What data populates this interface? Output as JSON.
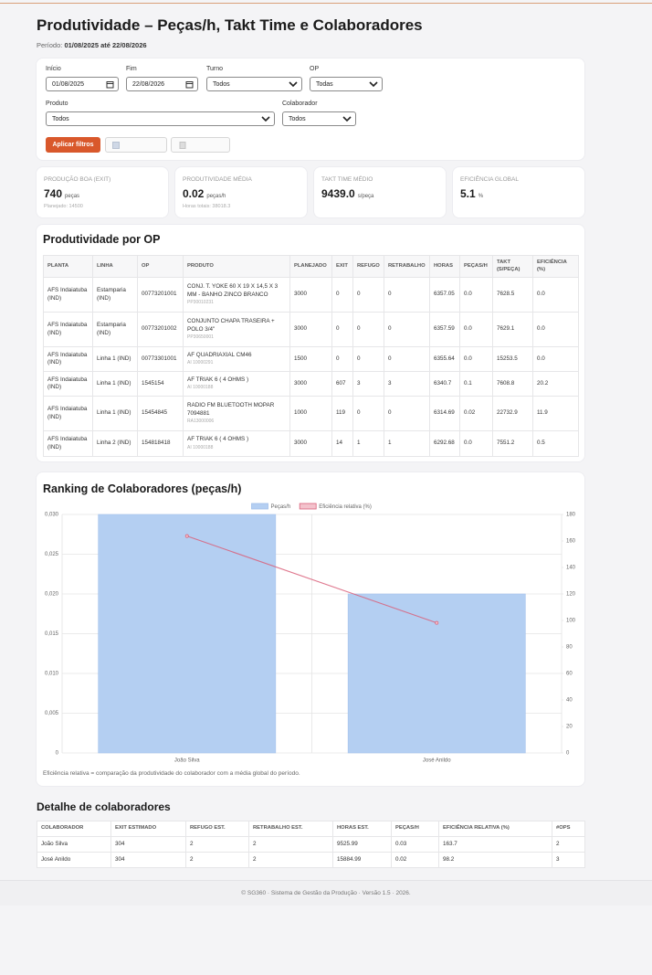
{
  "header": {
    "title": "Produtividade – Peças/h, Takt Time e Colaboradores",
    "period_label": "Período:",
    "period": "01/08/2025 até 22/08/2026"
  },
  "filters": {
    "fields": [
      {
        "label": "Início",
        "value": "01/08/2025"
      },
      {
        "label": "Fim",
        "value": "22/08/2026"
      },
      {
        "label": "Turno",
        "value": "Todos"
      },
      {
        "label": "OP",
        "value": "Todas"
      },
      {
        "label": "Produto",
        "value": "Todos"
      },
      {
        "label": "Colaborador",
        "value": "Todos"
      }
    ],
    "apply": "Aplicar filtros"
  },
  "kpis": [
    {
      "label": "Produção boa (EXIT)",
      "value": "740",
      "unit": "peças",
      "sub": "Planejado: 14500"
    },
    {
      "label": "Produtividade média",
      "value": "0.02",
      "unit": "peças/h",
      "sub": "Horas totais: 38018.3"
    },
    {
      "label": "Takt time médio",
      "value": "9439.0",
      "unit": "s/peça"
    },
    {
      "label": "Eficiência global",
      "value": "5.1",
      "unit": "%"
    }
  ],
  "op_table": {
    "title": "Produtividade por OP",
    "columns": [
      "PLANTA",
      "LINHA",
      "OP",
      "PRODUTO",
      "PLANEJADO",
      "EXIT",
      "REFUGO",
      "RETRABALHO",
      "HORAS",
      "PEÇAS/H",
      "TAKT (S/PEÇA)",
      "EFICIÊNCIA (%)"
    ],
    "rows": [
      {
        "planta": "AFS Indaiatuba (IND)",
        "linha": "Estamparia (IND)",
        "op": "00773201001",
        "produto": "CONJ. T. YOKE 60 X 19 X 14,5 X 3 MM - BANHO ZINCO BRANCO",
        "codigo": "PP30010231",
        "planejado": "3000",
        "exit": "0",
        "refugo": "0",
        "retrabalho": "0",
        "horas": "6357.05",
        "pecas_h": "0.0",
        "takt": "7628.5",
        "eficiencia": "0.0"
      },
      {
        "planta": "AFS Indaiatuba (IND)",
        "linha": "Estamparia (IND)",
        "op": "00773201002",
        "produto": "CONJUNTO CHAPA TRASEIRA + POLO 3/4\"",
        "codigo": "PP30650001",
        "planejado": "3000",
        "exit": "0",
        "refugo": "0",
        "retrabalho": "0",
        "horas": "6357.59",
        "pecas_h": "0.0",
        "takt": "7629.1",
        "eficiencia": "0.0"
      },
      {
        "planta": "AFS Indaiatuba (IND)",
        "linha": "Linha 1 (IND)",
        "op": "00773301001",
        "produto": "AF QUADRIAXIAL CM46",
        "codigo": "AI 10000291",
        "planejado": "1500",
        "exit": "0",
        "refugo": "0",
        "retrabalho": "0",
        "horas": "6355.64",
        "pecas_h": "0.0",
        "takt": "15253.5",
        "eficiencia": "0.0"
      },
      {
        "planta": "AFS Indaiatuba (IND)",
        "linha": "Linha 1 (IND)",
        "op": "1545154",
        "produto": "AF TRIAK 6 ( 4 OHMS )",
        "codigo": "AI 10000188",
        "planejado": "3000",
        "exit": "607",
        "refugo": "3",
        "retrabalho": "3",
        "horas": "6340.7",
        "pecas_h": "0.1",
        "takt": "7608.8",
        "eficiencia": "20.2"
      },
      {
        "planta": "AFS Indaiatuba (IND)",
        "linha": "Linha 1 (IND)",
        "op": "15454845",
        "produto": "RADIO FM BLUETOOTH MOPAR 7094881",
        "codigo": "RA13000006",
        "planejado": "1000",
        "exit": "119",
        "refugo": "0",
        "retrabalho": "0",
        "horas": "6314.69",
        "pecas_h": "0.02",
        "takt": "22732.9",
        "eficiencia": "11.9"
      },
      {
        "planta": "AFS Indaiatuba (IND)",
        "linha": "Linha 2 (IND)",
        "op": "154818418",
        "produto": "AF TRIAK 6 ( 4 OHMS )",
        "codigo": "AI 10000188",
        "planejado": "3000",
        "exit": "14",
        "refugo": "1",
        "retrabalho": "1",
        "horas": "6292.68",
        "pecas_h": "0.0",
        "takt": "7551.2",
        "eficiencia": "0.5"
      }
    ]
  },
  "chart_data": {
    "type": "bar",
    "title": "Ranking de Colaboradores (peças/h)",
    "categories": [
      "João Silva",
      "José Anildo"
    ],
    "series": [
      {
        "name": "Peças/h",
        "color": "#b4cff2",
        "values": [
          0.03,
          0.02
        ]
      },
      {
        "name": "Eficiência relativa (%)",
        "type": "line",
        "axis": "y2",
        "color": "#d9607a",
        "values": [
          163.7,
          98.2
        ]
      }
    ],
    "ylim": [
      0,
      0.03
    ],
    "yticks": [
      0,
      {
        "value": 0.005,
        "label": "0,005"
      },
      {
        "value": 0.01,
        "label": "0,010"
      },
      {
        "value": 0.015,
        "label": "0,015"
      },
      {
        "value": 0.02,
        "label": "0,020"
      },
      {
        "value": 0.025,
        "label": "0,025"
      },
      {
        "value": 0.03,
        "label": "0,030"
      }
    ],
    "y2lim": [
      0,
      180
    ],
    "y2ticks": [
      0,
      20,
      40,
      60,
      80,
      100,
      120,
      140,
      160,
      180
    ],
    "grid": true,
    "legend": "top"
  },
  "chart_note": "Eficiência relativa = comparação da produtividade do colaborador com a média global do período.",
  "detail_table": {
    "title": "Detalhe de colaboradores",
    "columns": [
      "COLABORADOR",
      "EXIT ESTIMADO",
      "REFUGO EST.",
      "RETRABALHO EST.",
      "HORAS EST.",
      "PEÇAS/H",
      "EFICIÊNCIA RELATIVA (%)",
      "#OPS"
    ],
    "rows": [
      [
        "João Silva",
        "304",
        "2",
        "2",
        "9525.99",
        "0.03",
        "163.7",
        "2"
      ],
      [
        "José Anildo",
        "304",
        "2",
        "2",
        "15884.99",
        "0.02",
        "98.2",
        "3"
      ]
    ]
  },
  "footer": "© SG360 · Sistema de Gestão da Produção · Versão 1.5 · 2026."
}
